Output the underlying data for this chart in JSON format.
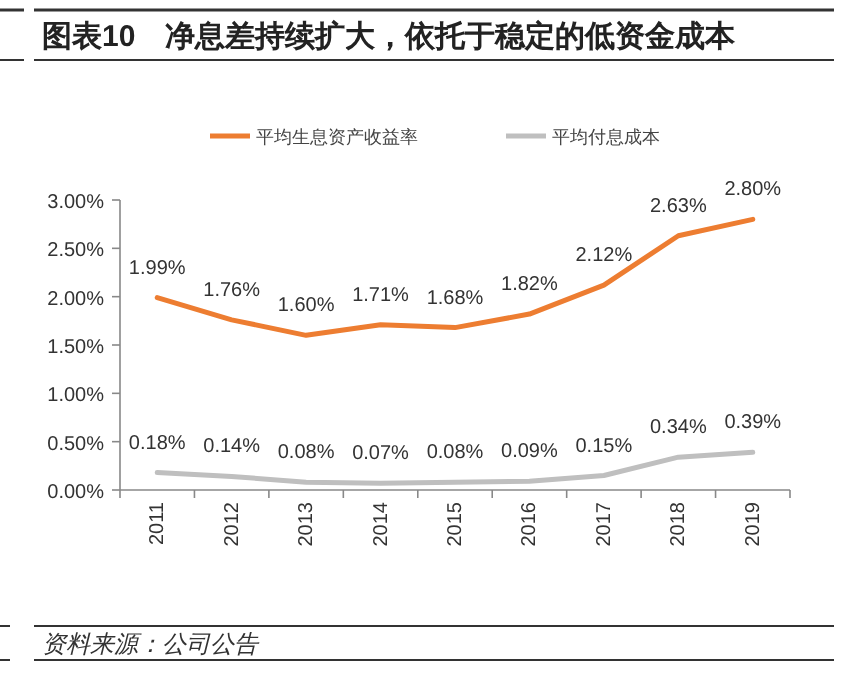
{
  "chart_data": {
    "type": "line",
    "title": "图表10　净息差持续扩大，依托于稳定的低资金成本",
    "categories": [
      "2011",
      "2012",
      "2013",
      "2014",
      "2015",
      "2016",
      "2017",
      "2018",
      "2019"
    ],
    "series": [
      {
        "name": "平均生息资产收益率",
        "color": "#ed7d31",
        "values": [
          1.99,
          1.76,
          1.6,
          1.71,
          1.68,
          1.82,
          2.12,
          2.63,
          2.8
        ],
        "value_labels": [
          "1.99%",
          "1.76%",
          "1.60%",
          "1.71%",
          "1.68%",
          "1.82%",
          "2.12%",
          "2.63%",
          "2.80%"
        ]
      },
      {
        "name": "平均付息成本",
        "color": "#bfbfbf",
        "values": [
          0.18,
          0.14,
          0.08,
          0.07,
          0.08,
          0.09,
          0.15,
          0.34,
          0.39
        ],
        "value_labels": [
          "0.18%",
          "0.14%",
          "0.08%",
          "0.07%",
          "0.08%",
          "0.09%",
          "0.15%",
          "0.34%",
          "0.39%"
        ]
      }
    ],
    "ylim": [
      0,
      3
    ],
    "yticks": [
      {
        "value": 0,
        "label": "0.00%"
      },
      {
        "value": 0.5,
        "label": "0.50%"
      },
      {
        "value": 1,
        "label": "1.00%"
      },
      {
        "value": 1.5,
        "label": "1.50%"
      },
      {
        "value": 2,
        "label": "2.00%"
      },
      {
        "value": 2.5,
        "label": "2.50%"
      },
      {
        "value": 3,
        "label": "3.00%"
      }
    ],
    "grid": false,
    "legend": "top",
    "marker": "none",
    "line_style": "solid",
    "annotations": [
      "资料来源：公司公告"
    ]
  }
}
